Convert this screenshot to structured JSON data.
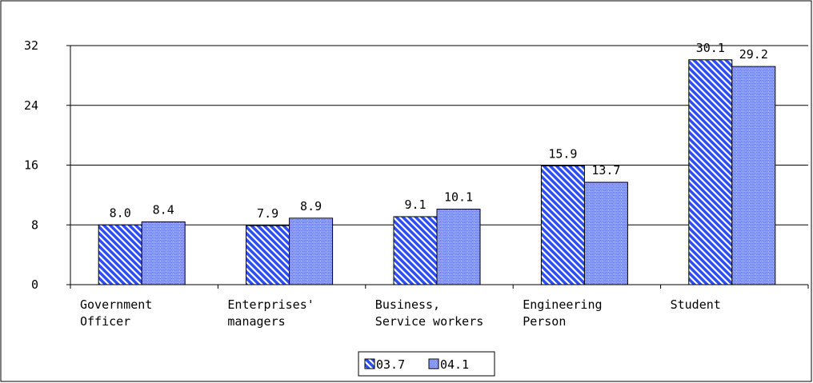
{
  "chart_data": {
    "type": "bar",
    "categories": [
      [
        "Government",
        "Officer"
      ],
      [
        "Enterprises'",
        "managers"
      ],
      [
        "Business,",
        "Service workers"
      ],
      [
        "Engineering",
        "Person"
      ],
      [
        "Student"
      ]
    ],
    "series": [
      {
        "name": "03.7",
        "color": "#2e4ff0",
        "pattern": "diagonal",
        "values": [
          8.0,
          7.9,
          9.1,
          15.9,
          30.1
        ],
        "value_labels": [
          "8.0",
          "7.9",
          "9.1",
          "15.9",
          "30.1"
        ]
      },
      {
        "name": "04.1",
        "color": "#5a70f0",
        "pattern": "dots",
        "values": [
          8.4,
          8.9,
          10.1,
          13.7,
          29.2
        ],
        "value_labels": [
          "8.4",
          "8.9",
          "10.1",
          "13.7",
          "29.2"
        ]
      }
    ],
    "ylim": [
      0,
      32
    ],
    "yticks": [
      0,
      8,
      16,
      24,
      32
    ],
    "grid": true,
    "legend": "bottom"
  }
}
